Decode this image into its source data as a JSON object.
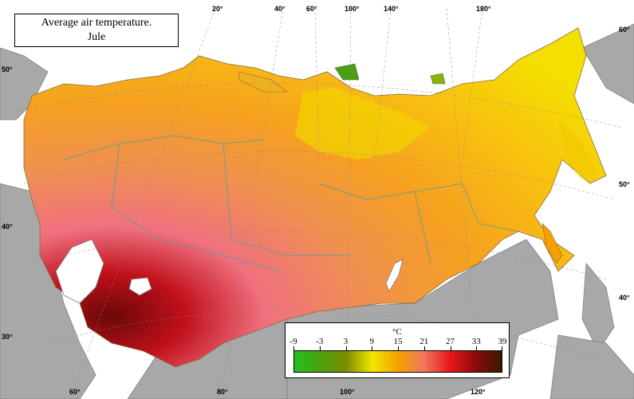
{
  "map": {
    "title_line1": "Average air temperature.",
    "title_line2": "Jule",
    "legend": {
      "unit": "°C",
      "ticks": [
        "-9",
        "-3",
        "3",
        "9",
        "15",
        "21",
        "27",
        "33",
        "39"
      ],
      "colors": [
        "#22c020",
        "#4aa010",
        "#7a8c00",
        "#f0e800",
        "#f6a000",
        "#f07860",
        "#e81818",
        "#8a0a0a",
        "#3a1a00"
      ]
    },
    "top_labels": [
      "20°",
      "40°",
      "60°",
      "100°",
      "140°",
      "180°"
    ],
    "bottom_labels": [
      "60°",
      "80°",
      "100°",
      "120°"
    ],
    "left_labels": [
      "50°",
      "40°",
      "30°"
    ],
    "right_labels": [
      "60°",
      "50°",
      "40°"
    ]
  }
}
